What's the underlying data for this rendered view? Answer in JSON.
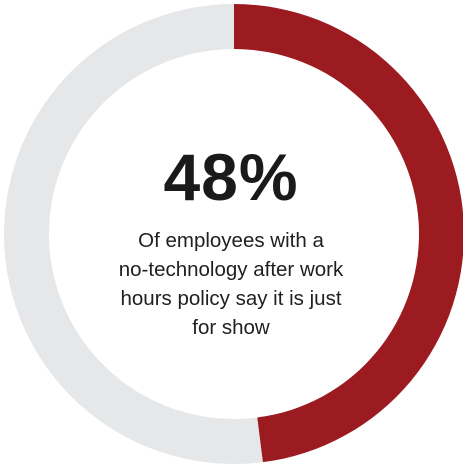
{
  "chart_data": {
    "type": "pie",
    "style": "donut",
    "slices": [
      {
        "label": "Say it is just for show",
        "value": 48,
        "color": "#9b1b21"
      },
      {
        "label": "",
        "value": 52,
        "color": "#e6e7e9"
      }
    ],
    "center_value": "48%",
    "center_caption": "Of employees with a no-technology after work hours policy say it is just for show",
    "caption_lines": [
      "Of employees with a",
      "no-technology after work",
      "hours policy say it is just",
      "for show"
    ],
    "start_angle": "top",
    "direction": "clockwise"
  }
}
